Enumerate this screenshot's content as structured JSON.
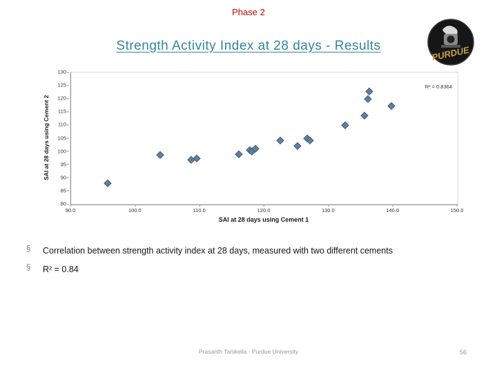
{
  "header": {
    "phase": "Phase 2",
    "title": "Strength Activity Index at 28 days - Results"
  },
  "logo": {
    "text": "PURDUE"
  },
  "chart_data": {
    "type": "scatter",
    "title": "",
    "xlabel": "SAI at 28 days using Cement 1",
    "ylabel": "SAI at 28 days using Cement 2",
    "xlim": [
      90,
      150
    ],
    "ylim": [
      80,
      130
    ],
    "x_ticks": [
      90,
      100,
      110,
      120,
      130,
      140,
      150
    ],
    "x_tick_labels": [
      "90.0",
      "100.0",
      "110.0",
      "120.0",
      "130.0",
      "140.0",
      "150.0"
    ],
    "y_ticks": [
      80,
      85,
      90,
      95,
      100,
      105,
      110,
      115,
      120,
      125,
      130
    ],
    "annotation": "R² = 0.8364",
    "grid": false,
    "legend": "none",
    "points": [
      [
        95.7,
        88.1
      ],
      [
        103.8,
        98.8
      ],
      [
        108.6,
        97.0
      ],
      [
        109.5,
        97.5
      ],
      [
        116.0,
        99.1
      ],
      [
        117.7,
        100.7
      ],
      [
        118.1,
        100.2
      ],
      [
        118.6,
        101.2
      ],
      [
        122.5,
        104.3
      ],
      [
        125.1,
        102.3
      ],
      [
        126.6,
        105.1
      ],
      [
        127.1,
        104.3
      ],
      [
        132.5,
        110.1
      ],
      [
        135.5,
        113.8
      ],
      [
        136.1,
        120.1
      ],
      [
        136.3,
        122.9
      ],
      [
        139.7,
        117.4
      ]
    ]
  },
  "bullets": {
    "marker": "§",
    "items": [
      "Correlation between strength activity index at 28 days, measured with two different cements",
      "R² = 0.84"
    ]
  },
  "footer": {
    "text": "Prasanth Tanikella - Purdue University",
    "page": "56"
  },
  "colors": {
    "phase-red": "#c00000",
    "title-teal": "#31859c",
    "marker-fill": "#60809f",
    "marker-border": "#3e5c7e",
    "footer-gray": "#969696"
  }
}
